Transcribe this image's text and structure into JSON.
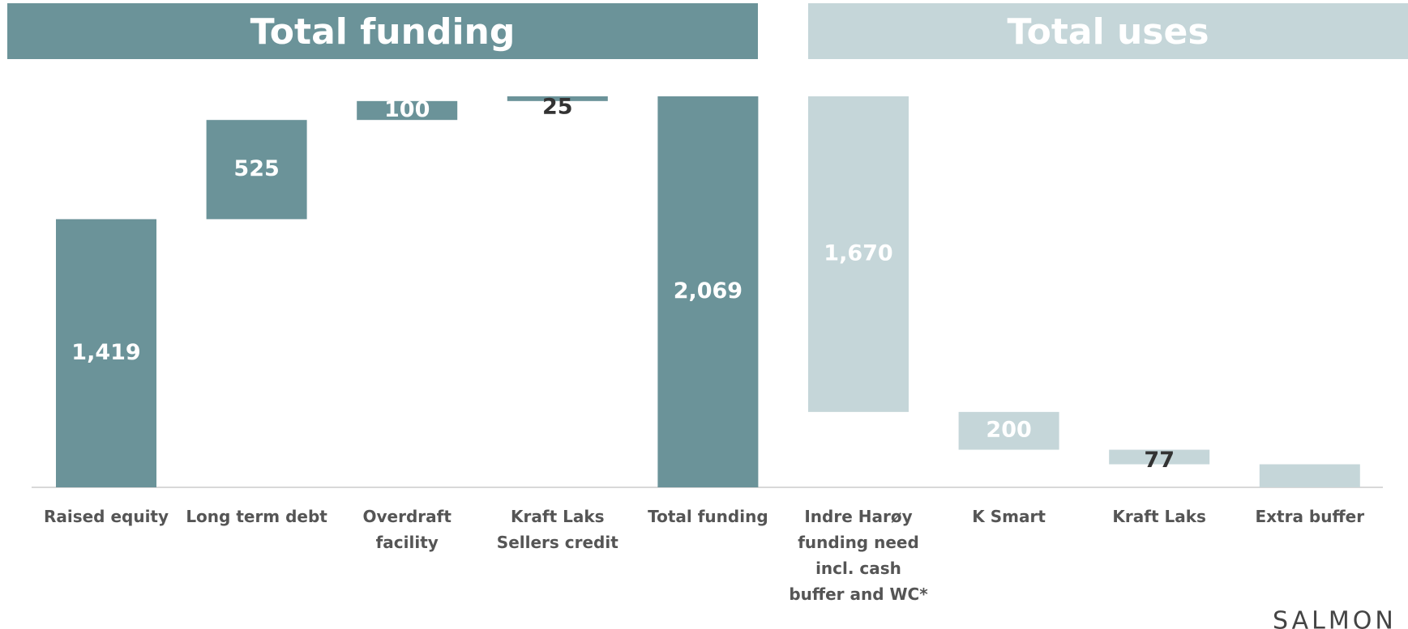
{
  "chart_data": {
    "type": "waterfall",
    "headers": [
      {
        "title": "Total funding",
        "color": "#6b9399"
      },
      {
        "title": "Total uses",
        "color": "#c5d6d9"
      }
    ],
    "categories": [
      "Raised equity",
      "Long term debt",
      "Overdraft facility",
      "Kraft Laks Sellers credit",
      "Total funding",
      "Indre Harøy funding need incl. cash buffer and WC*",
      "K Smart",
      "Kraft Laks",
      "Extra buffer"
    ],
    "values": [
      1419,
      525,
      100,
      25,
      2069,
      1670,
      200,
      77,
      122
    ],
    "value_labels": [
      "1,419",
      "525",
      "100",
      "25",
      "2,069",
      "1,670",
      "200",
      "77",
      null
    ],
    "steps": [
      "up",
      "up",
      "up",
      "up",
      "total",
      "down",
      "down",
      "down",
      "down"
    ],
    "colors": [
      "#6b9399",
      "#6b9399",
      "#6b9399",
      "#6b9399",
      "#6b9399",
      "#c5d6d9",
      "#c5d6d9",
      "#c5d6d9",
      "#c5d6d9"
    ],
    "ylim": [
      0,
      2069
    ],
    "logo": "SALMON"
  }
}
